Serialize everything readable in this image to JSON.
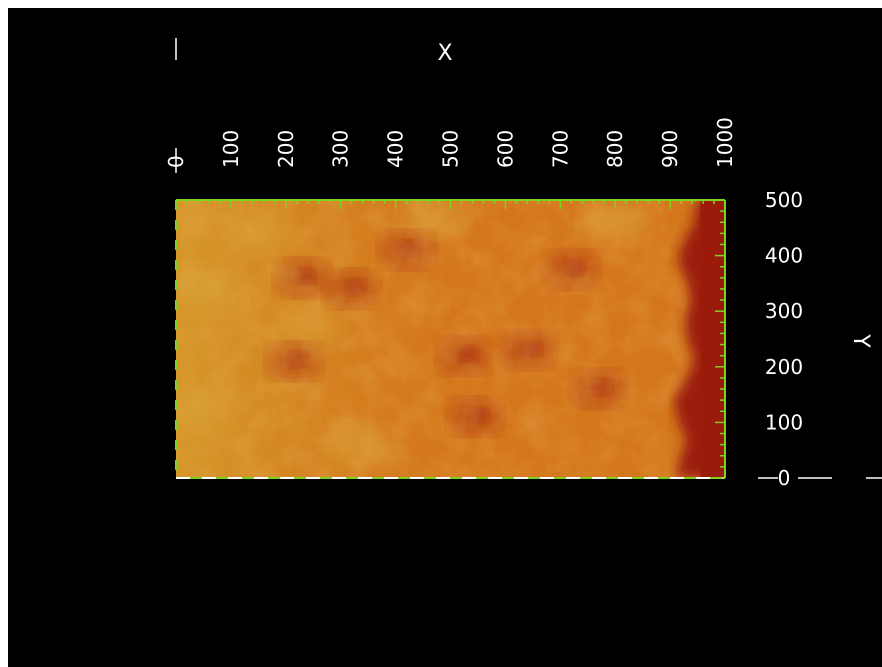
{
  "chart_data": {
    "type": "heatmap",
    "title": "",
    "xlabel": "X",
    "ylabel": "Y",
    "xlim": [
      0,
      1000
    ],
    "ylim": [
      0,
      500
    ],
    "x_ticks": [
      "0",
      "100",
      "200",
      "300",
      "400",
      "500",
      "600",
      "700",
      "800",
      "900",
      "1000"
    ],
    "y_ticks": [
      "0",
      "100",
      "200",
      "300",
      "400",
      "500"
    ],
    "colors": {
      "background": "#000000",
      "frame": "#7ed321",
      "text": "#ffffff",
      "surface_base": "#d4761c",
      "surface_dark": "#9b1a0a",
      "surface_light": "#d59a2a"
    },
    "features": {
      "dark_edge_band_x_start": 930,
      "dark_patches": [
        {
          "x": 215,
          "y": 210
        },
        {
          "x": 230,
          "y": 360
        },
        {
          "x": 320,
          "y": 340
        },
        {
          "x": 420,
          "y": 410
        },
        {
          "x": 525,
          "y": 220
        },
        {
          "x": 545,
          "y": 110
        },
        {
          "x": 640,
          "y": 230
        },
        {
          "x": 720,
          "y": 375
        },
        {
          "x": 770,
          "y": 160
        }
      ],
      "light_patches": [
        {
          "x": 40,
          "y": 120
        },
        {
          "x": 60,
          "y": 330
        },
        {
          "x": 150,
          "y": 440
        },
        {
          "x": 240,
          "y": 270
        },
        {
          "x": 330,
          "y": 60
        },
        {
          "x": 470,
          "y": 470
        },
        {
          "x": 800,
          "y": 460
        }
      ]
    }
  }
}
